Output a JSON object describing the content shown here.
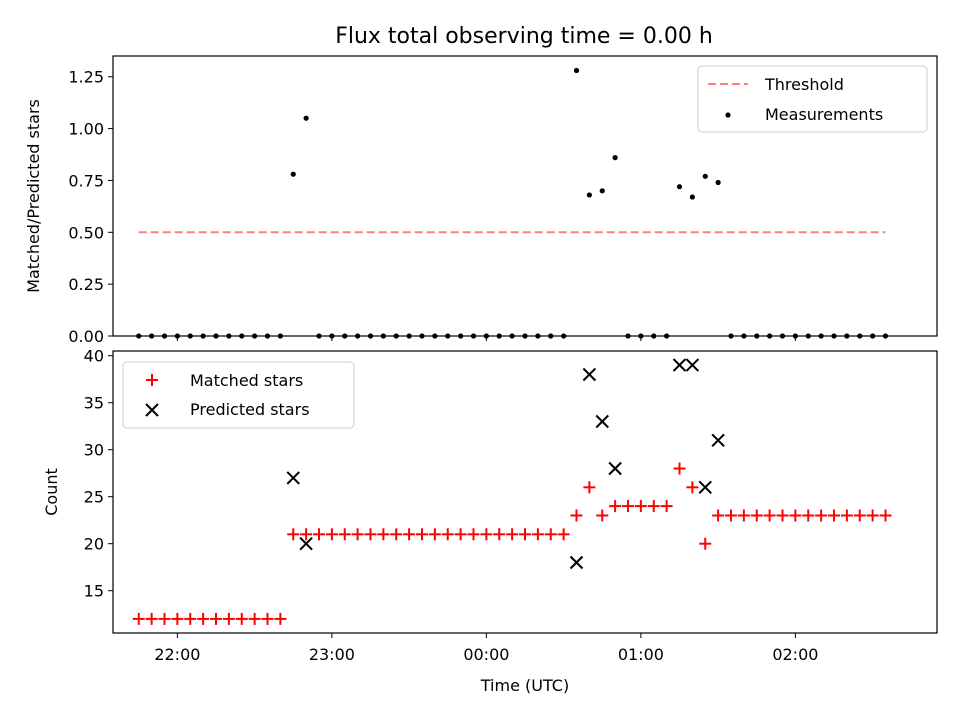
{
  "title": "Flux total observing time = 0.00 h",
  "top": {
    "ylabel": "Matched/Predicted stars",
    "ylim": [
      0,
      1.35
    ],
    "yticks": [
      "0.00",
      "0.25",
      "0.50",
      "0.75",
      "1.00",
      "1.25"
    ],
    "threshold_value": 0.5,
    "legend": {
      "threshold": "Threshold",
      "measurements": "Measurements"
    },
    "colors": {
      "threshold": "#ff7f7f",
      "measurements": "#000000"
    }
  },
  "bottom": {
    "ylabel": "Count",
    "ylim": [
      10.5,
      40.5
    ],
    "yticks": [
      "15",
      "20",
      "25",
      "30",
      "35",
      "40"
    ],
    "legend": {
      "matched": "Matched stars",
      "predicted": "Predicted stars"
    },
    "colors": {
      "matched": "#ff0000",
      "predicted": "#000000"
    }
  },
  "xaxis": {
    "label": "Time (UTC)",
    "range": [
      "21:35",
      "02:55"
    ],
    "ticks": [
      "22:00",
      "23:00",
      "00:00",
      "01:00",
      "02:00"
    ]
  },
  "chart_data": {
    "type": "scatter",
    "time": [
      "21:45",
      "21:50",
      "21:55",
      "22:00",
      "22:05",
      "22:10",
      "22:15",
      "22:20",
      "22:25",
      "22:30",
      "22:35",
      "22:40",
      "22:45",
      "22:50",
      "22:55",
      "23:00",
      "23:05",
      "23:10",
      "23:15",
      "23:20",
      "23:25",
      "23:30",
      "23:35",
      "23:40",
      "23:45",
      "23:50",
      "23:55",
      "00:00",
      "00:05",
      "00:10",
      "00:15",
      "00:20",
      "00:25",
      "00:30",
      "00:35",
      "00:40",
      "00:45",
      "00:50",
      "00:55",
      "01:00",
      "01:05",
      "01:10",
      "01:15",
      "01:20",
      "01:25",
      "01:30",
      "01:35",
      "01:40",
      "01:45",
      "01:50",
      "01:55",
      "02:00",
      "02:05",
      "02:10",
      "02:15",
      "02:20",
      "02:25",
      "02:30",
      "02:35"
    ],
    "matched": [
      12,
      12,
      12,
      12,
      12,
      12,
      12,
      12,
      12,
      12,
      12,
      12,
      21,
      21,
      21,
      21,
      21,
      21,
      21,
      21,
      21,
      21,
      21,
      21,
      21,
      21,
      21,
      21,
      21,
      21,
      21,
      21,
      21,
      21,
      23,
      26,
      23,
      24,
      24,
      24,
      24,
      24,
      28,
      26,
      20,
      23,
      23,
      23,
      23,
      23,
      23,
      23,
      23,
      23,
      23,
      23,
      23,
      23,
      23
    ],
    "predicted_points": [
      {
        "time": "22:45",
        "value": 27
      },
      {
        "time": "22:50",
        "value": 20
      },
      {
        "time": "00:35",
        "value": 18
      },
      {
        "time": "00:40",
        "value": 38
      },
      {
        "time": "00:45",
        "value": 33
      },
      {
        "time": "00:50",
        "value": 28
      },
      {
        "time": "01:15",
        "value": 39
      },
      {
        "time": "01:20",
        "value": 39
      },
      {
        "time": "01:25",
        "value": 26
      },
      {
        "time": "01:30",
        "value": 31
      }
    ],
    "ratio": [
      0,
      0,
      0,
      0,
      0,
      0,
      0,
      0,
      0,
      0,
      0,
      0,
      0.78,
      1.05,
      0,
      0,
      0,
      0,
      0,
      0,
      0,
      0,
      0,
      0,
      0,
      0,
      0,
      0,
      0,
      0,
      0,
      0,
      0,
      0,
      1.28,
      0.68,
      0.7,
      0.86,
      0,
      0,
      0,
      0,
      0.72,
      0.67,
      0.77,
      0.74,
      0,
      0,
      0,
      0,
      0,
      0,
      0,
      0,
      0,
      0,
      0,
      0,
      0
    ],
    "threshold": 0.5
  }
}
